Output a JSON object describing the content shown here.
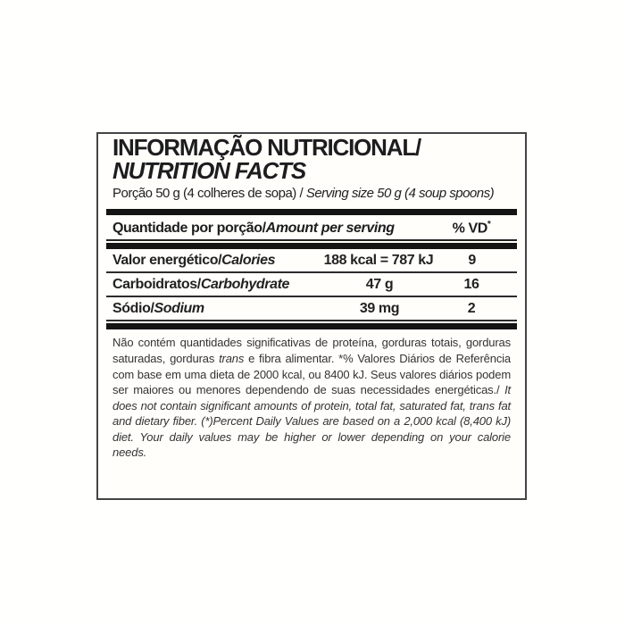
{
  "label": {
    "title_pt": "INFORMAÇÃO NUTRICIONAL/",
    "title_en": "NUTRITION FACTS",
    "serving_pt": "Porção 50 g (4 colheres de sopa) / ",
    "serving_en": "Serving size 50 g (4 soup spoons)",
    "table": {
      "header_pt": "Quantidade por porção/",
      "header_en": "Amount per serving",
      "dv_header": "% VD",
      "dv_header_sup": "*",
      "rows": [
        {
          "name_pt": "Valor energético/",
          "name_en": "Calories",
          "amount": "188 kcal = 787 kJ",
          "dv": "9"
        },
        {
          "name_pt": "Carboidratos/",
          "name_en": "Carbohydrate",
          "amount": "47 g",
          "dv": "16"
        },
        {
          "name_pt": "Sódio/",
          "name_en": "Sodium",
          "amount": "39 mg",
          "dv": "2"
        }
      ]
    },
    "footnote": {
      "pt_1": "Não contém quantidades significativas de proteína, gorduras totais, gorduras saturadas, gorduras ",
      "pt_trans_italic": "trans",
      "pt_2": " e fibra alimentar. *% Valores Diários de Referência com base em uma dieta de 2000 kcal, ou 8400 kJ. Seus valores diários podem ser maiores ou menores dependendo de suas necessidades energéticas./ ",
      "en": "It does not contain significant amounts of protein, total fat, saturated fat, trans fat and dietary fiber. (*)Percent Daily Values are based on a 2,000 kcal (8,400 kJ) diet. Your daily values may be higher or lower depending on your calorie needs."
    },
    "colors": {
      "text": "#222222",
      "rule_bar": "#141414",
      "border": "#454545",
      "background": "#fffefa"
    }
  }
}
